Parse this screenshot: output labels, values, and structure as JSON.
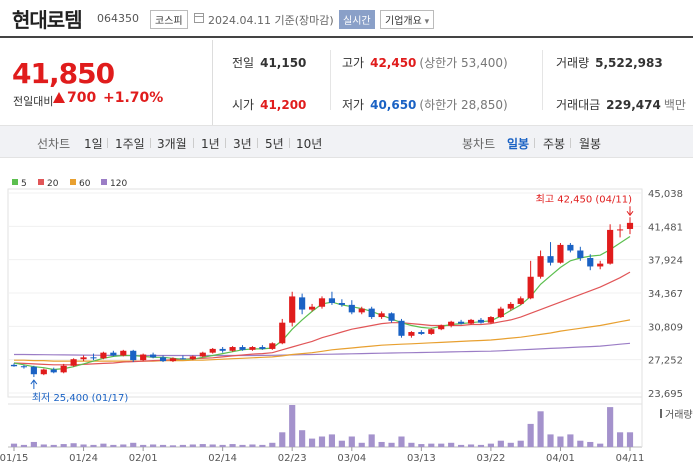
{
  "header": {
    "name": "현대로템",
    "code": "064350",
    "market": "코스피",
    "date": "2024.04.11",
    "date_note": "기준(장마감)",
    "realtime": "실시간",
    "overview": "기업개요"
  },
  "price": {
    "current": "41,850",
    "change_label": "전일대비",
    "change": "700",
    "change_pct": "+1.70%"
  },
  "stats": {
    "prev_label": "전일",
    "prev": "41,150",
    "open_label": "시가",
    "open": "41,200",
    "high_label": "고가",
    "high": "42,450",
    "high_note": "(상한가 53,400)",
    "low_label": "저가",
    "low": "40,650",
    "low_note": "(하한가 28,850)",
    "volume_label": "거래량",
    "volume": "5,522,983",
    "amount_label": "거래대금",
    "amount": "229,474",
    "amount_unit": "백만"
  },
  "toolbar": {
    "line_chart": "선차트",
    "periods": [
      "1일",
      "1주일",
      "3개월",
      "1년",
      "3년",
      "5년",
      "10년"
    ],
    "candle_chart": "봉차트",
    "candles": [
      "일봉",
      "주봉",
      "월봉"
    ],
    "active_candle": "일봉"
  },
  "colors": {
    "up": "#e01c1c",
    "down": "#1a62c4",
    "ma5": "#5cbf4f",
    "ma20": "#e15658",
    "ma60": "#e8a030",
    "ma120": "#9b7dc6",
    "volume_bar": "#a492cc"
  },
  "chart_data": {
    "type": "candlestick",
    "legend": [
      {
        "name": "5",
        "color": "#5cbf4f"
      },
      {
        "name": "20",
        "color": "#e15658"
      },
      {
        "name": "60",
        "color": "#e8a030"
      },
      {
        "name": "120",
        "color": "#9b7dc6"
      }
    ],
    "y_ticks": [
      "45,038",
      "41,481",
      "37,924",
      "34,367",
      "30,809",
      "27,252",
      "23,695"
    ],
    "y_tick_values": [
      45038,
      41481,
      37924,
      34367,
      30809,
      27252,
      23695
    ],
    "ylim": [
      23695,
      45038
    ],
    "x_ticks": [
      "01/15",
      "01/24",
      "02/01",
      "02/14",
      "02/23",
      "03/04",
      "03/13",
      "03/22",
      "04/01",
      "04/11"
    ],
    "x_tick_index": [
      0,
      7,
      13,
      21,
      28,
      34,
      41,
      48,
      55,
      62
    ],
    "high_label": "최고 42,450 (04/11)",
    "low_label": "최저 25,400 (01/17)",
    "volume_label": "거래량",
    "candles": [
      {
        "o": 26700,
        "h": 26850,
        "l": 26500,
        "c": 26550
      },
      {
        "o": 26550,
        "h": 26700,
        "l": 26300,
        "c": 26500
      },
      {
        "o": 26500,
        "h": 26600,
        "l": 25400,
        "c": 25700
      },
      {
        "o": 25700,
        "h": 26300,
        "l": 25600,
        "c": 26200
      },
      {
        "o": 26200,
        "h": 26400,
        "l": 25800,
        "c": 25900
      },
      {
        "o": 25900,
        "h": 26800,
        "l": 25800,
        "c": 26600
      },
      {
        "o": 26600,
        "h": 27400,
        "l": 26500,
        "c": 27300
      },
      {
        "o": 27300,
        "h": 27700,
        "l": 27100,
        "c": 27500
      },
      {
        "o": 27500,
        "h": 27900,
        "l": 27200,
        "c": 27400
      },
      {
        "o": 27400,
        "h": 28100,
        "l": 27300,
        "c": 28000
      },
      {
        "o": 28000,
        "h": 28200,
        "l": 27600,
        "c": 27700
      },
      {
        "o": 27700,
        "h": 28300,
        "l": 27600,
        "c": 28200
      },
      {
        "o": 28200,
        "h": 28300,
        "l": 27000,
        "c": 27200
      },
      {
        "o": 27200,
        "h": 27900,
        "l": 27100,
        "c": 27800
      },
      {
        "o": 27800,
        "h": 28000,
        "l": 27400,
        "c": 27500
      },
      {
        "o": 27500,
        "h": 27700,
        "l": 27000,
        "c": 27100
      },
      {
        "o": 27100,
        "h": 27500,
        "l": 27000,
        "c": 27400
      },
      {
        "o": 27400,
        "h": 27700,
        "l": 27300,
        "c": 27300
      },
      {
        "o": 27300,
        "h": 27700,
        "l": 27200,
        "c": 27600
      },
      {
        "o": 27600,
        "h": 28100,
        "l": 27500,
        "c": 28000
      },
      {
        "o": 28000,
        "h": 28500,
        "l": 27900,
        "c": 28400
      },
      {
        "o": 28400,
        "h": 28600,
        "l": 28000,
        "c": 28200
      },
      {
        "o": 28200,
        "h": 28700,
        "l": 28100,
        "c": 28600
      },
      {
        "o": 28600,
        "h": 28800,
        "l": 28200,
        "c": 28300
      },
      {
        "o": 28300,
        "h": 28700,
        "l": 28200,
        "c": 28600
      },
      {
        "o": 28600,
        "h": 28800,
        "l": 28300,
        "c": 28400
      },
      {
        "o": 28400,
        "h": 29100,
        "l": 28300,
        "c": 29000
      },
      {
        "o": 29000,
        "h": 31600,
        "l": 28900,
        "c": 31200
      },
      {
        "o": 31200,
        "h": 34500,
        "l": 30800,
        "c": 34000
      },
      {
        "o": 33900,
        "h": 34300,
        "l": 32100,
        "c": 32600
      },
      {
        "o": 32600,
        "h": 33200,
        "l": 32400,
        "c": 32900
      },
      {
        "o": 32900,
        "h": 34000,
        "l": 32700,
        "c": 33800
      },
      {
        "o": 33800,
        "h": 34500,
        "l": 33100,
        "c": 33300
      },
      {
        "o": 33300,
        "h": 33700,
        "l": 32900,
        "c": 33100
      },
      {
        "o": 33100,
        "h": 33600,
        "l": 32100,
        "c": 32300
      },
      {
        "o": 32300,
        "h": 32900,
        "l": 32100,
        "c": 32700
      },
      {
        "o": 32700,
        "h": 32900,
        "l": 31600,
        "c": 31800
      },
      {
        "o": 31800,
        "h": 32400,
        "l": 31600,
        "c": 32200
      },
      {
        "o": 32200,
        "h": 32300,
        "l": 31200,
        "c": 31400
      },
      {
        "o": 31400,
        "h": 31600,
        "l": 29600,
        "c": 29800
      },
      {
        "o": 29800,
        "h": 30300,
        "l": 29600,
        "c": 30200
      },
      {
        "o": 30200,
        "h": 30400,
        "l": 29900,
        "c": 30000
      },
      {
        "o": 30000,
        "h": 30600,
        "l": 29900,
        "c": 30500
      },
      {
        "o": 30500,
        "h": 31000,
        "l": 30400,
        "c": 30900
      },
      {
        "o": 30900,
        "h": 31400,
        "l": 30700,
        "c": 31300
      },
      {
        "o": 31300,
        "h": 31500,
        "l": 31000,
        "c": 31100
      },
      {
        "o": 31100,
        "h": 31600,
        "l": 31000,
        "c": 31500
      },
      {
        "o": 31500,
        "h": 31700,
        "l": 31100,
        "c": 31200
      },
      {
        "o": 31200,
        "h": 31900,
        "l": 31100,
        "c": 31800
      },
      {
        "o": 31800,
        "h": 32900,
        "l": 31700,
        "c": 32700
      },
      {
        "o": 32700,
        "h": 33400,
        "l": 32500,
        "c": 33200
      },
      {
        "o": 33200,
        "h": 34000,
        "l": 33100,
        "c": 33800
      },
      {
        "o": 33800,
        "h": 37800,
        "l": 33700,
        "c": 36100
      },
      {
        "o": 36100,
        "h": 38900,
        "l": 35900,
        "c": 38300
      },
      {
        "o": 38300,
        "h": 39800,
        "l": 37300,
        "c": 37600
      },
      {
        "o": 37600,
        "h": 39700,
        "l": 37500,
        "c": 39500
      },
      {
        "o": 39500,
        "h": 39700,
        "l": 38700,
        "c": 38900
      },
      {
        "o": 38900,
        "h": 39300,
        "l": 37800,
        "c": 38100
      },
      {
        "o": 38100,
        "h": 38500,
        "l": 36800,
        "c": 37200
      },
      {
        "o": 37200,
        "h": 37800,
        "l": 36900,
        "c": 37500
      },
      {
        "o": 37500,
        "h": 41700,
        "l": 37400,
        "c": 41100
      },
      {
        "o": 41100,
        "h": 41700,
        "l": 40300,
        "c": 41150
      },
      {
        "o": 41200,
        "h": 42450,
        "l": 40650,
        "c": 41850
      }
    ],
    "volumes": [
      0.08,
      0.05,
      0.12,
      0.06,
      0.05,
      0.07,
      0.09,
      0.06,
      0.05,
      0.08,
      0.05,
      0.06,
      0.1,
      0.05,
      0.06,
      0.05,
      0.04,
      0.05,
      0.06,
      0.07,
      0.06,
      0.05,
      0.07,
      0.05,
      0.06,
      0.05,
      0.1,
      0.35,
      1.0,
      0.4,
      0.2,
      0.25,
      0.3,
      0.15,
      0.25,
      0.1,
      0.3,
      0.12,
      0.1,
      0.25,
      0.1,
      0.07,
      0.08,
      0.08,
      0.1,
      0.05,
      0.06,
      0.05,
      0.08,
      0.15,
      0.1,
      0.15,
      0.55,
      0.85,
      0.3,
      0.25,
      0.3,
      0.15,
      0.12,
      0.08,
      0.95,
      0.35,
      0.35
    ],
    "ma5": [
      26900,
      26700,
      26500,
      26400,
      26200,
      26300,
      26500,
      26800,
      27100,
      27400,
      27600,
      27700,
      27700,
      27600,
      27500,
      27500,
      27400,
      27300,
      27300,
      27500,
      27700,
      27900,
      28100,
      28300,
      28400,
      28400,
      28500,
      29300,
      30500,
      31500,
      32400,
      33200,
      33400,
      33100,
      32900,
      32700,
      32400,
      32000,
      31600,
      31200,
      30900,
      30700,
      30600,
      30800,
      31000,
      31100,
      31200,
      31300,
      31400,
      31900,
      32500,
      33100,
      34000,
      35300,
      36200,
      37100,
      37800,
      38100,
      38300,
      38400,
      39000,
      39700,
      40400
    ],
    "ma20": [
      26900,
      26850,
      26800,
      26750,
      26700,
      26700,
      26700,
      26750,
      26800,
      26850,
      26900,
      27000,
      27050,
      27100,
      27150,
      27200,
      27250,
      27300,
      27350,
      27400,
      27450,
      27550,
      27650,
      27750,
      27850,
      27900,
      28000,
      28300,
      28600,
      28900,
      29200,
      29600,
      29900,
      30200,
      30500,
      30700,
      30900,
      31100,
      31200,
      31200,
      31100,
      31000,
      30900,
      30900,
      30900,
      30900,
      31000,
      31000,
      31100,
      31300,
      31500,
      31800,
      32200,
      32600,
      33000,
      33400,
      33800,
      34200,
      34600,
      35000,
      35500,
      36000,
      36600
    ],
    "ma60": [
      27200,
      27200,
      27150,
      27150,
      27100,
      27100,
      27100,
      27100,
      27100,
      27100,
      27100,
      27100,
      27100,
      27100,
      27100,
      27150,
      27150,
      27150,
      27200,
      27200,
      27250,
      27300,
      27350,
      27400,
      27450,
      27500,
      27550,
      27650,
      27800,
      27900,
      28000,
      28150,
      28300,
      28400,
      28500,
      28600,
      28700,
      28800,
      28850,
      28900,
      28950,
      29000,
      29050,
      29100,
      29150,
      29200,
      29250,
      29300,
      29350,
      29450,
      29550,
      29650,
      29800,
      29950,
      30100,
      30300,
      30450,
      30600,
      30750,
      30900,
      31100,
      31300,
      31500
    ],
    "ma120": [
      27800,
      27800,
      27790,
      27780,
      27770,
      27760,
      27750,
      27740,
      27730,
      27720,
      27710,
      27700,
      27700,
      27700,
      27700,
      27700,
      27700,
      27700,
      27700,
      27700,
      27700,
      27700,
      27700,
      27700,
      27700,
      27710,
      27720,
      27740,
      27760,
      27780,
      27800,
      27820,
      27840,
      27860,
      27880,
      27900,
      27920,
      27940,
      27960,
      27980,
      28000,
      28020,
      28040,
      28060,
      28080,
      28100,
      28120,
      28140,
      28160,
      28200,
      28250,
      28300,
      28350,
      28400,
      28450,
      28500,
      28550,
      28600,
      28650,
      28700,
      28800,
      28900,
      29000
    ]
  }
}
